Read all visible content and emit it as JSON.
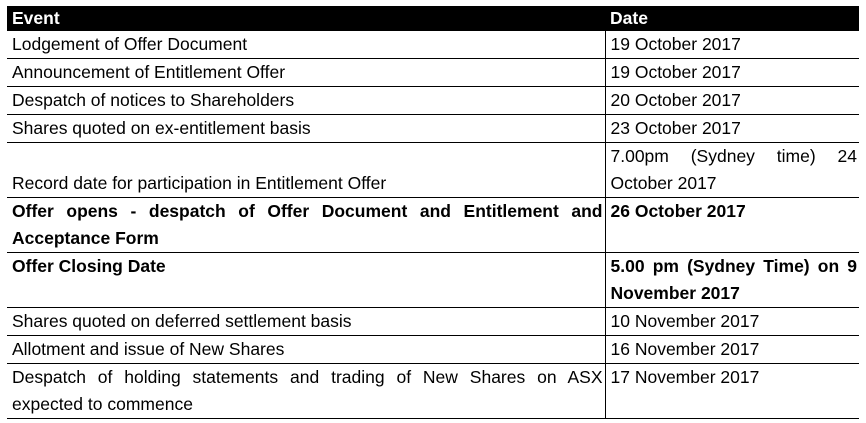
{
  "table": {
    "headers": {
      "event": "Event",
      "date": "Date"
    },
    "rows": [
      {
        "event": "Lodgement of Offer Document",
        "date": "19 October 2017"
      },
      {
        "event": "Announcement of Entitlement Offer",
        "date": "19 October 2017"
      },
      {
        "event": "Despatch of notices to Shareholders",
        "date": "20 October 2017"
      },
      {
        "event": "Shares quoted on ex-entitlement basis",
        "date": "23 October 2017"
      },
      {
        "event": "Record date for participation in Entitlement Offer",
        "date": "7.00pm (Sydney time) 24 October 2017"
      },
      {
        "event": "Offer opens - despatch of Offer Document and Entitlement and Acceptance Form",
        "date": "26 October 2017",
        "bold": true
      },
      {
        "event": "Offer Closing Date",
        "date": "5.00 pm (Sydney Time) on 9 November 2017",
        "bold": true
      },
      {
        "event": "Shares quoted on deferred settlement basis",
        "date": "10 November 2017"
      },
      {
        "event": "Allotment and issue of New Shares",
        "date": "16 November 2017"
      },
      {
        "event": "Despatch of holding statements and trading of New Shares on ASX expected to commence",
        "date": "17 November 2017"
      }
    ]
  }
}
